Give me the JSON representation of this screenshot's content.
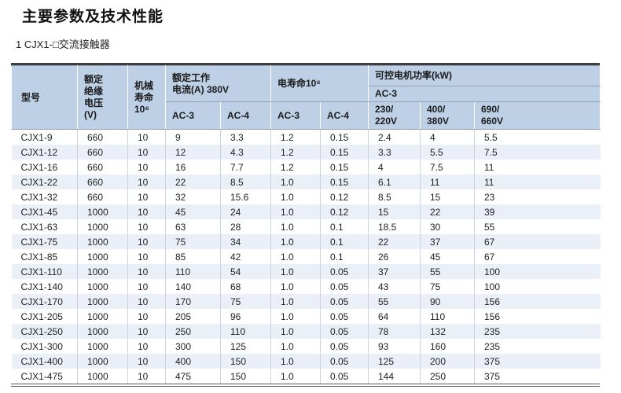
{
  "page": {
    "title": "主要参数及技术性能",
    "subtitle": "1 CJX1-□交流接触器"
  },
  "colors": {
    "header_bg": "#bed0e6",
    "row_alt_bg": "#eaeff8",
    "border_dark": "#3f3f3f"
  },
  "table": {
    "header": {
      "model": "型号",
      "insulation_voltage": "额定\n绝缘\n电压\n(V)",
      "mechanical_life": "机械\n寿命\n10⁶",
      "rated_current_group": "额定工作\n电流(A) 380V",
      "electrical_life_group": "电寿命10⁶",
      "motor_power_group": "可控电机功率(kW)",
      "motor_power_subgroup": "AC-3",
      "current_ac3": "AC-3",
      "current_ac4": "AC-4",
      "life_ac3": "AC-3",
      "life_ac4": "AC-4",
      "power_230_220": "230/\n220V",
      "power_400_380": "400/\n380V",
      "power_690_660": "690/\n660V"
    },
    "rows": [
      [
        "CJX1-9",
        "660",
        "10",
        "9",
        "3.3",
        "1.2",
        "0.15",
        "2.4",
        "4",
        "5.5"
      ],
      [
        "CJX1-12",
        "660",
        "10",
        "12",
        "4.3",
        "1.2",
        "0.15",
        "3.3",
        "5.5",
        "7.5"
      ],
      [
        "CJX1-16",
        "660",
        "10",
        "16",
        "7.7",
        "1.2",
        "0.15",
        "4",
        "7.5",
        "11"
      ],
      [
        "CJX1-22",
        "660",
        "10",
        "22",
        "8.5",
        "1.0",
        "0.15",
        "6.1",
        "11",
        "11"
      ],
      [
        "CJX1-32",
        "660",
        "10",
        "32",
        "15.6",
        "1.0",
        "0.12",
        "8.5",
        "15",
        "23"
      ],
      [
        "CJX1-45",
        "1000",
        "10",
        "45",
        "24",
        "1.0",
        "0.12",
        "15",
        "22",
        "39"
      ],
      [
        "CJX1-63",
        "1000",
        "10",
        "63",
        "28",
        "1.0",
        "0.1",
        "18.5",
        "30",
        "55"
      ],
      [
        "CJX1-75",
        "1000",
        "10",
        "75",
        "34",
        "1.0",
        "0.1",
        "22",
        "37",
        "67"
      ],
      [
        "CJX1-85",
        "1000",
        "10",
        "85",
        "42",
        "1.0",
        "0.1",
        "26",
        "45",
        "67"
      ],
      [
        "CJX1-110",
        "1000",
        "10",
        "110",
        "54",
        "1.0",
        "0.05",
        "37",
        "55",
        "100"
      ],
      [
        "CJX1-140",
        "1000",
        "10",
        "140",
        "68",
        "1.0",
        "0.05",
        "43",
        "75",
        "100"
      ],
      [
        "CJX1-170",
        "1000",
        "10",
        "170",
        "75",
        "1.0",
        "0.05",
        "55",
        "90",
        "156"
      ],
      [
        "CJX1-205",
        "1000",
        "10",
        "205",
        "96",
        "1.0",
        "0.05",
        "64",
        "110",
        "156"
      ],
      [
        "CJX1-250",
        "1000",
        "10",
        "250",
        "110",
        "1.0",
        "0.05",
        "78",
        "132",
        "235"
      ],
      [
        "CJX1-300",
        "1000",
        "10",
        "300",
        "125",
        "1.0",
        "0.05",
        "93",
        "160",
        "235"
      ],
      [
        "CJX1-400",
        "1000",
        "10",
        "400",
        "150",
        "1.0",
        "0.05",
        "125",
        "200",
        "375"
      ],
      [
        "CJX1-475",
        "1000",
        "10",
        "475",
        "150",
        "1.0",
        "0.05",
        "144",
        "250",
        "375"
      ]
    ]
  }
}
